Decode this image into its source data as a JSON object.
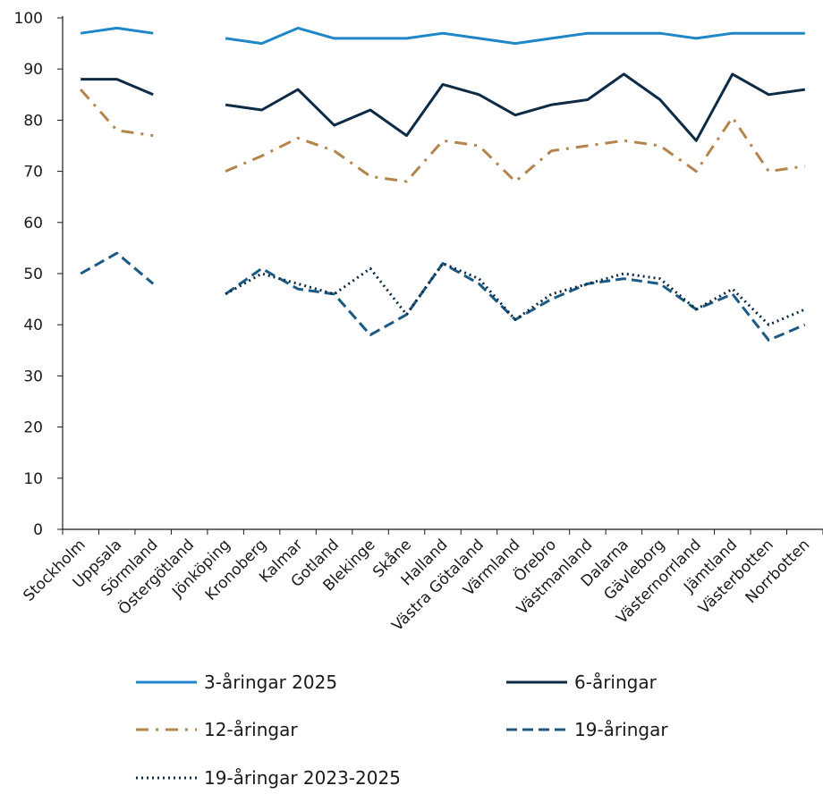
{
  "chart_data": {
    "type": "line",
    "title": "",
    "xlabel": "",
    "ylabel": "",
    "ylim": [
      0,
      100
    ],
    "yticks": [
      0,
      10,
      20,
      30,
      40,
      50,
      60,
      70,
      80,
      90,
      100
    ],
    "grid": false,
    "legend_position": "bottom",
    "categories": [
      "Stockholm",
      "Uppsala",
      "Sörmland",
      "Östergötland",
      "Jönköping",
      "Kronoberg",
      "Kalmar",
      "Gotland",
      "Blekinge",
      "Skåne",
      "Halland",
      "Västra Götaland",
      "Värmland",
      "Örebro",
      "Västmanland",
      "Dalarna",
      "Gävleborg",
      "Västernorrland",
      "Jämtland",
      "Västerbotten",
      "Norrbotten"
    ],
    "series": [
      {
        "name": "3-åringar 2025",
        "color": "#1f86c8",
        "style": "solid",
        "values": [
          97,
          98,
          97,
          null,
          96,
          95,
          98,
          96,
          96,
          96,
          97,
          96,
          95,
          96,
          97,
          97,
          97,
          96,
          97,
          97,
          97
        ]
      },
      {
        "name": "6-åringar",
        "color": "#0d2b45",
        "style": "solid",
        "values": [
          88,
          88,
          85,
          null,
          83,
          82,
          86,
          79,
          82,
          77,
          87,
          85,
          81,
          83,
          84,
          89,
          84,
          76,
          89,
          85,
          86
        ]
      },
      {
        "name": "12-åringar",
        "color": "#b5844a",
        "style": "dashdot",
        "values": [
          86,
          78,
          77,
          null,
          70,
          73,
          76.5,
          74,
          69,
          68,
          76,
          75,
          68,
          74,
          75,
          76,
          75,
          70,
          80.5,
          70,
          71
        ]
      },
      {
        "name": "19-åringar",
        "color": "#1b5a85",
        "style": "dashed",
        "values": [
          50,
          54,
          48,
          null,
          46,
          51,
          47,
          46,
          38,
          42,
          52,
          48,
          41,
          45,
          48,
          49,
          48,
          43,
          46,
          37,
          40
        ]
      },
      {
        "name": "19-åringar 2023-2025",
        "color": "#0d2b45",
        "style": "dotted",
        "values": [
          null,
          null,
          null,
          null,
          46,
          50,
          48,
          46,
          51,
          42,
          52,
          49,
          41,
          46,
          48,
          50,
          49,
          43,
          47,
          40,
          43
        ]
      }
    ]
  }
}
